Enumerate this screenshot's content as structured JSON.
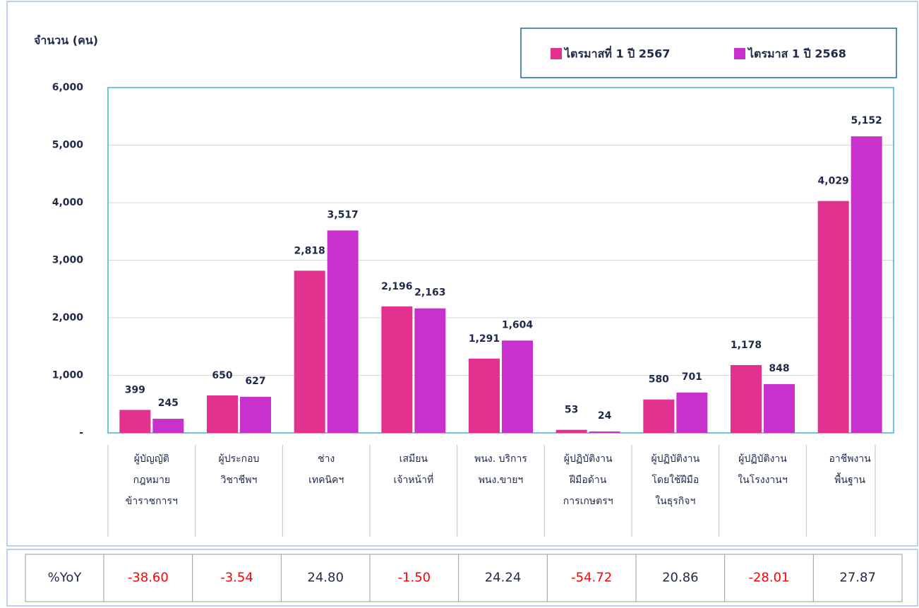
{
  "chart_data": {
    "type": "bar",
    "y_axis_label": "จำนวน (คน)",
    "categories": [
      [
        "ผู้บัญญัติ",
        "กฎหมาย",
        "ข้าราชการฯ"
      ],
      [
        "ผู้ประกอบ",
        "วิชาชีพฯ"
      ],
      [
        "ช่าง",
        "เทคนิคฯ"
      ],
      [
        "เสมียน",
        "เจ้าหน้าที่"
      ],
      [
        "พนง. บริการ",
        "พนง.ขายฯ"
      ],
      [
        "ผู้ปฏิบัติงาน",
        "ฝีมือด้าน",
        "การเกษตรฯ"
      ],
      [
        "ผู้ปฏิบัติงาน",
        "โดยใช้ฝีมือ",
        "ในธุรกิจฯ"
      ],
      [
        "ผู้ปฏิบัติงาน",
        "ในโรงงานฯ"
      ],
      [
        "อาชีพงาน",
        "พื้นฐาน"
      ]
    ],
    "series": [
      {
        "name": "ไตรมาสที่ 1 ปี 2567",
        "color": "#e3318f",
        "values": [
          399,
          650,
          2818,
          2196,
          1291,
          53,
          580,
          1178,
          4029
        ],
        "value_labels": [
          "399",
          "650",
          "2,818",
          "2,196",
          "1,291",
          "53",
          "580",
          "1,178",
          "4,029"
        ]
      },
      {
        "name": "ไตรมาส 1 ปี 2568",
        "color": "#c832cc",
        "values": [
          245,
          627,
          3517,
          2163,
          1604,
          24,
          701,
          848,
          5152
        ],
        "value_labels": [
          "245",
          "627",
          "3,517",
          "2,163",
          "1,604",
          "24",
          "701",
          "848",
          "5,152"
        ]
      }
    ],
    "ylim": [
      0,
      6000
    ],
    "yticks": [
      {
        "value": 0,
        "label": "-"
      },
      {
        "value": 1000,
        "label": "1,000"
      },
      {
        "value": 2000,
        "label": "2,000"
      },
      {
        "value": 3000,
        "label": "3,000"
      },
      {
        "value": 4000,
        "label": "4,000"
      },
      {
        "value": 5000,
        "label": "5,000"
      },
      {
        "value": 6000,
        "label": "6,000"
      }
    ],
    "grid": true,
    "legend": "top-right"
  },
  "table": {
    "header": "%YoY",
    "values": [
      "-38.60",
      "-3.54",
      "24.80",
      "-1.50",
      "24.24",
      "-54.72",
      "20.86",
      "-28.01",
      "27.87"
    ]
  }
}
